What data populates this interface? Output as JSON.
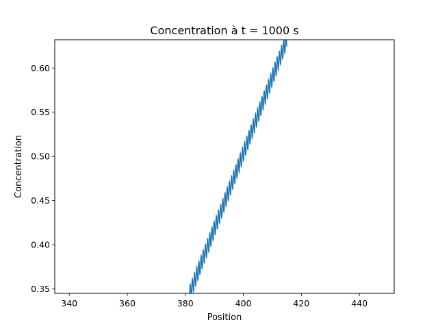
{
  "chart_data": {
    "type": "line",
    "title": "Concentration à t = 1000 s",
    "xlabel": "Position",
    "ylabel": "Concentration",
    "xlim": [
      335,
      452
    ],
    "ylim": [
      0.345,
      0.632
    ],
    "x_ticks": [
      340,
      360,
      380,
      400,
      420,
      440
    ],
    "x_tick_labels": [
      "340",
      "360",
      "380",
      "400",
      "420",
      "440"
    ],
    "y_ticks": [
      0.35,
      0.4,
      0.45,
      0.5,
      0.55,
      0.6
    ],
    "y_tick_labels": [
      "0.35",
      "0.40",
      "0.45",
      "0.50",
      "0.55",
      "0.60"
    ],
    "grid": false,
    "series": [
      {
        "name": "Concentration",
        "color": "#1f77b4",
        "trend_start": [
          381.5,
          0.345
        ],
        "trend_end": [
          415.0,
          0.632
        ],
        "oscillation_period": 0.75,
        "oscillation_amplitude": 0.009
      }
    ]
  }
}
